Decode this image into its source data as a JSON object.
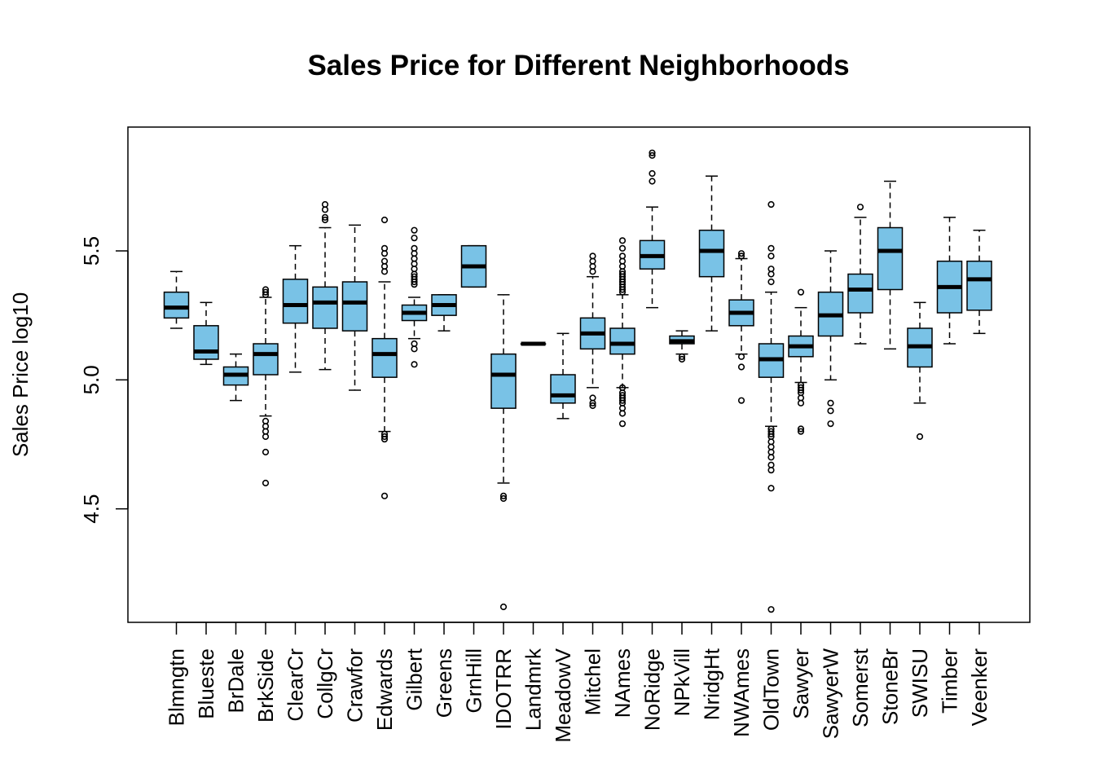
{
  "chart_data": {
    "type": "box",
    "title": "Sales Price for Different Neighborhoods",
    "xlabel": "",
    "ylabel": "Sales Price log10",
    "ylim": [
      4.06,
      5.98
    ],
    "yticks": [
      "4.5",
      "5.0",
      "5.5"
    ],
    "grid": false,
    "legend": "none",
    "box_fill": "#79c2e6",
    "stroke": "#000000",
    "categories": [
      "Blmngtn",
      "Blueste",
      "BrDale",
      "BrkSide",
      "ClearCr",
      "CollgCr",
      "Crawfor",
      "Edwards",
      "Gilbert",
      "Greens",
      "GrnHill",
      "IDOTRR",
      "Landmrk",
      "MeadowV",
      "Mitchel",
      "NAmes",
      "NoRidge",
      "NPkVill",
      "NridgHt",
      "NWAmes",
      "OldTown",
      "Sawyer",
      "SawyerW",
      "Somerst",
      "StoneBr",
      "SWISU",
      "Timber",
      "Veenker"
    ],
    "boxes": [
      {
        "min": 5.2,
        "q1": 5.24,
        "median": 5.28,
        "q3": 5.34,
        "max": 5.42,
        "outliers": []
      },
      {
        "min": 5.06,
        "q1": 5.08,
        "median": 5.11,
        "q3": 5.21,
        "max": 5.3,
        "outliers": []
      },
      {
        "min": 4.92,
        "q1": 4.98,
        "median": 5.02,
        "q3": 5.05,
        "max": 5.1,
        "outliers": []
      },
      {
        "min": 4.86,
        "q1": 5.02,
        "median": 5.1,
        "q3": 5.14,
        "max": 5.32,
        "outliers": [
          5.35,
          5.34,
          5.33,
          4.84,
          4.82,
          4.8,
          4.78,
          4.72,
          4.6
        ]
      },
      {
        "min": 5.03,
        "q1": 5.22,
        "median": 5.29,
        "q3": 5.39,
        "max": 5.52,
        "outliers": []
      },
      {
        "min": 5.04,
        "q1": 5.2,
        "median": 5.3,
        "q3": 5.36,
        "max": 5.59,
        "outliers": [
          5.68,
          5.66,
          5.63,
          5.62
        ]
      },
      {
        "min": 4.96,
        "q1": 5.19,
        "median": 5.3,
        "q3": 5.38,
        "max": 5.6,
        "outliers": []
      },
      {
        "min": 4.8,
        "q1": 5.01,
        "median": 5.1,
        "q3": 5.16,
        "max": 5.38,
        "outliers": [
          5.62,
          5.51,
          5.49,
          5.46,
          5.44,
          5.42,
          4.79,
          4.78,
          4.77,
          4.55
        ]
      },
      {
        "min": 5.16,
        "q1": 5.23,
        "median": 5.26,
        "q3": 5.29,
        "max": 5.32,
        "outliers": [
          5.58,
          5.55,
          5.51,
          5.49,
          5.47,
          5.45,
          5.43,
          5.41,
          5.4,
          5.39,
          5.38,
          5.37,
          5.14,
          5.12,
          5.06
        ]
      },
      {
        "min": 5.19,
        "q1": 5.25,
        "median": 5.29,
        "q3": 5.33,
        "max": 5.33,
        "outliers": []
      },
      {
        "min": 5.36,
        "q1": 5.36,
        "median": 5.44,
        "q3": 5.52,
        "max": 5.52,
        "outliers": []
      },
      {
        "min": 4.6,
        "q1": 4.89,
        "median": 5.02,
        "q3": 5.1,
        "max": 5.33,
        "outliers": [
          4.55,
          4.54,
          4.12
        ]
      },
      {
        "min": 5.14,
        "q1": 5.14,
        "median": 5.14,
        "q3": 5.14,
        "max": 5.14,
        "outliers": []
      },
      {
        "min": 4.85,
        "q1": 4.91,
        "median": 4.94,
        "q3": 5.02,
        "max": 5.18,
        "outliers": []
      },
      {
        "min": 4.97,
        "q1": 5.12,
        "median": 5.18,
        "q3": 5.24,
        "max": 5.4,
        "outliers": [
          5.48,
          5.46,
          5.44,
          5.42,
          4.93,
          4.91,
          4.9
        ]
      },
      {
        "min": 4.97,
        "q1": 5.1,
        "median": 5.14,
        "q3": 5.2,
        "max": 5.33,
        "outliers": [
          5.54,
          5.51,
          5.48,
          5.46,
          5.44,
          5.42,
          5.41,
          5.4,
          5.39,
          5.38,
          5.37,
          5.36,
          5.35,
          5.34,
          4.97,
          4.95,
          4.94,
          4.93,
          4.92,
          4.91,
          4.89,
          4.87,
          4.83
        ]
      },
      {
        "min": 5.28,
        "q1": 5.43,
        "median": 5.48,
        "q3": 5.54,
        "max": 5.67,
        "outliers": [
          5.88,
          5.87,
          5.8,
          5.77
        ]
      },
      {
        "min": 5.1,
        "q1": 5.14,
        "median": 5.15,
        "q3": 5.17,
        "max": 5.19,
        "outliers": [
          5.09,
          5.08
        ]
      },
      {
        "min": 5.19,
        "q1": 5.4,
        "median": 5.5,
        "q3": 5.58,
        "max": 5.79,
        "outliers": []
      },
      {
        "min": 5.1,
        "q1": 5.21,
        "median": 5.26,
        "q3": 5.31,
        "max": 5.47,
        "outliers": [
          5.49,
          5.48,
          5.09,
          5.05,
          4.92
        ]
      },
      {
        "min": 4.82,
        "q1": 5.01,
        "median": 5.08,
        "q3": 5.14,
        "max": 5.34,
        "outliers": [
          5.68,
          5.51,
          5.48,
          5.43,
          5.41,
          5.38,
          4.81,
          4.8,
          4.79,
          4.78,
          4.76,
          4.74,
          4.72,
          4.7,
          4.67,
          4.65,
          4.58,
          4.11
        ]
      },
      {
        "min": 4.99,
        "q1": 5.09,
        "median": 5.13,
        "q3": 5.17,
        "max": 5.28,
        "outliers": [
          5.34,
          4.98,
          4.97,
          4.96,
          4.95,
          4.93,
          4.91,
          4.81,
          4.8
        ]
      },
      {
        "min": 5.0,
        "q1": 5.17,
        "median": 5.25,
        "q3": 5.34,
        "max": 5.5,
        "outliers": [
          4.91,
          4.88,
          4.83
        ]
      },
      {
        "min": 5.14,
        "q1": 5.26,
        "median": 5.35,
        "q3": 5.41,
        "max": 5.63,
        "outliers": [
          5.67
        ]
      },
      {
        "min": 5.12,
        "q1": 5.35,
        "median": 5.5,
        "q3": 5.59,
        "max": 5.77,
        "outliers": []
      },
      {
        "min": 4.91,
        "q1": 5.05,
        "median": 5.13,
        "q3": 5.2,
        "max": 5.3,
        "outliers": [
          4.78
        ]
      },
      {
        "min": 5.14,
        "q1": 5.26,
        "median": 5.36,
        "q3": 5.46,
        "max": 5.63,
        "outliers": []
      },
      {
        "min": 5.18,
        "q1": 5.27,
        "median": 5.39,
        "q3": 5.46,
        "max": 5.58,
        "outliers": []
      }
    ]
  }
}
